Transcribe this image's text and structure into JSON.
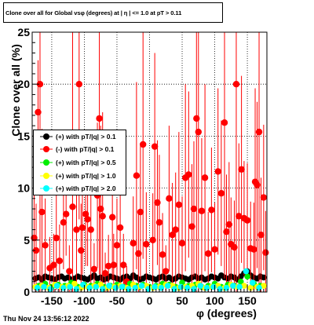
{
  "title": "Clone  over all for Global vsφ (degrees) at | η | <= 1.0 at pT > 0.11",
  "footer": "Thu Nov 24 13:56:12 2022",
  "chart_data": {
    "type": "scatter",
    "xlabel": "φ (degrees)",
    "ylabel": "Clone  over all (%)",
    "xlim": [
      -180,
      180
    ],
    "ylim": [
      0,
      25
    ],
    "xticks": [
      -150,
      -100,
      -50,
      0,
      50,
      100,
      150
    ],
    "yticks": [
      0,
      5,
      10,
      15,
      20,
      25
    ],
    "grid": true,
    "legend_position": "middle-left",
    "series": [
      {
        "name": "(+) with pT/|q| > 0.1",
        "color": "#000000",
        "x": [
          -175,
          -170,
          -165,
          -160,
          -155,
          -150,
          -145,
          -140,
          -135,
          -130,
          -125,
          -120,
          -115,
          -110,
          -105,
          -100,
          -95,
          -90,
          -85,
          -80,
          -75,
          -70,
          -65,
          -60,
          -55,
          -50,
          -45,
          -40,
          -35,
          -30,
          -25,
          -20,
          -15,
          -10,
          -5,
          0,
          5,
          10,
          15,
          20,
          25,
          30,
          35,
          40,
          45,
          50,
          55,
          60,
          65,
          70,
          75,
          80,
          85,
          90,
          95,
          100,
          105,
          110,
          115,
          120,
          125,
          130,
          135,
          140,
          145,
          150,
          155,
          160,
          165,
          170,
          175
        ],
        "y": [
          1.3,
          1.4,
          1.2,
          1.5,
          1.4,
          1.3,
          1.2,
          1.4,
          1.5,
          1.3,
          1.4,
          1.2,
          1.3,
          1.5,
          1.4,
          1.3,
          1.2,
          1.4,
          1.6,
          1.3,
          1.4,
          1.2,
          1.3,
          1.5,
          1.4,
          1.3,
          1.2,
          1.4,
          1.5,
          1.3,
          1.6,
          1.4,
          1.2,
          1.3,
          1.5,
          1.4,
          1.3,
          1.2,
          1.4,
          1.5,
          1.3,
          1.4,
          1.2,
          1.3,
          1.5,
          1.4,
          1.3,
          1.2,
          1.4,
          1.5,
          1.3,
          1.4,
          1.2,
          1.3,
          1.5,
          1.4,
          1.3,
          1.6,
          1.4,
          1.3,
          1.5,
          1.4,
          1.2,
          1.5,
          1.8,
          2.0,
          1.6,
          1.4,
          1.3,
          1.5,
          1.4
        ]
      },
      {
        "name": "(-) with pT/|q| > 0.1",
        "color": "#ff0000",
        "x": [
          -177,
          -174,
          -171,
          -168,
          -165,
          -160,
          -153,
          -147,
          -143,
          -138,
          -132,
          -128,
          -123,
          -118,
          -112,
          -108,
          -105,
          -103,
          -98,
          -95,
          -90,
          -85,
          -80,
          -77,
          -75,
          -72,
          -68,
          -63,
          -57,
          -55,
          -50,
          -45,
          -40,
          -35,
          -25,
          -20,
          -17,
          -14,
          -10,
          -5,
          5,
          8,
          12,
          15,
          20,
          25,
          30,
          35,
          40,
          45,
          50,
          55,
          60,
          65,
          68,
          72,
          75,
          80,
          85,
          90,
          95,
          100,
          105,
          110,
          115,
          118,
          122,
          125,
          130,
          133,
          137,
          141,
          145,
          150,
          155,
          160,
          162,
          165,
          168,
          171,
          175,
          178
        ],
        "y": [
          5.2,
          4.0,
          17.3,
          20.0,
          7.7,
          4.5,
          2.3,
          2.6,
          5.2,
          3.0,
          6.7,
          7.5,
          2.0,
          8.2,
          6.0,
          20.0,
          4.0,
          6.2,
          7.5,
          7.0,
          6.0,
          2.2,
          9.3,
          16.7,
          8.0,
          7.3,
          1.8,
          2.5,
          7.2,
          2.6,
          4.5,
          6.2,
          2.6,
          1.0,
          4.7,
          11.2,
          3.7,
          7.7,
          14.2,
          4.6,
          5.0,
          14.0,
          8.6,
          6.7,
          3.6,
          2.0,
          9.0,
          5.5,
          6.0,
          8.4,
          4.7,
          11.0,
          11.3,
          6.3,
          8.0,
          16.7,
          15.4,
          7.8,
          11.0,
          3.7,
          7.9,
          4.1,
          11.6,
          9.5,
          16.3,
          5.8,
          6.5,
          4.6,
          4.3,
          20.0,
          7.3,
          11.8,
          7.1,
          6.9,
          4.2,
          4.1,
          10.6,
          10.3,
          15.4,
          5.5,
          9.1,
          3.8
        ],
        "err": [
          5.0,
          4.5,
          5.0,
          25.0,
          8.0,
          4.5,
          3.0,
          3.0,
          5.0,
          3.5,
          4.5,
          4.0,
          2.5,
          25.0,
          6.0,
          13.0,
          4.5,
          4.5,
          5.0,
          4.5,
          6.0,
          2.5,
          7.0,
          15.0,
          8.0,
          10.0,
          2.0,
          3.0,
          6.0,
          3.0,
          4.5,
          6.0,
          3.0,
          1.5,
          4.5,
          9.0,
          4.0,
          6.5,
          11.0,
          5.0,
          4.5,
          9.0,
          6.0,
          6.5,
          4.0,
          2.5,
          7.0,
          5.0,
          5.5,
          7.0,
          4.5,
          9.0,
          8.0,
          6.0,
          6.5,
          20.0,
          20.0,
          7.0,
          9.0,
          4.0,
          6.0,
          4.5,
          8.0,
          7.0,
          15.0,
          5.5,
          6.0,
          4.5,
          4.5,
          20.0,
          7.0,
          9.0,
          5.5,
          5.5,
          4.5,
          4.5,
          9.0,
          8.0,
          20.0,
          5.5,
          7.0,
          4.0
        ]
      },
      {
        "name": "(+) with pT/|q| > 0.5",
        "color": "#00ee00",
        "x": [
          -170,
          -160,
          -150,
          -140,
          -130,
          -120,
          -110,
          -100,
          -90,
          -80,
          -70,
          -60,
          -50,
          -40,
          -30,
          -20,
          -10,
          0,
          10,
          20,
          30,
          40,
          50,
          60,
          70,
          80,
          90,
          100,
          110,
          120,
          130,
          140,
          150,
          160,
          170
        ],
        "y": [
          0.6,
          0.8,
          0.5,
          0.7,
          0.6,
          0.9,
          0.5,
          0.7,
          0.6,
          0.8,
          0.5,
          0.6,
          0.7,
          0.5,
          0.8,
          0.6,
          0.7,
          0.5,
          0.6,
          0.8,
          0.7,
          0.5,
          0.9,
          0.6,
          0.7,
          0.5,
          0.6,
          0.8,
          0.5,
          0.7,
          0.6,
          1.0,
          1.5,
          0.8,
          0.6
        ]
      },
      {
        "name": "(+) with pT/|q| > 1.0",
        "color": "#ffff00",
        "x": [
          -175,
          -165,
          -155,
          -145,
          -135,
          -125,
          -115,
          -105,
          -95,
          -85,
          -75,
          -65,
          -55,
          -45,
          -35,
          -25,
          -15,
          -5,
          5,
          15,
          25,
          35,
          45,
          55,
          65,
          75,
          85,
          95,
          105,
          115,
          125,
          135,
          145,
          155,
          165,
          175
        ],
        "y": [
          0.5,
          0.6,
          0.4,
          0.7,
          0.5,
          0.6,
          0.8,
          0.4,
          0.5,
          0.6,
          0.7,
          0.4,
          0.5,
          0.6,
          0.4,
          0.7,
          0.5,
          0.6,
          0.4,
          0.5,
          0.7,
          0.6,
          0.4,
          0.5,
          0.6,
          0.8,
          0.4,
          0.5,
          0.6,
          0.4,
          0.7,
          0.5,
          0.6,
          0.4,
          0.5,
          0.6
        ]
      },
      {
        "name": "(+) with pT/|q| > 2.0",
        "color": "#00ffff",
        "x": [
          -172,
          -162,
          -152,
          -142,
          -132,
          -122,
          -112,
          -102,
          -92,
          -82,
          -72,
          -62,
          -52,
          -42,
          -32,
          -22,
          -12,
          -2,
          8,
          18,
          28,
          38,
          48,
          58,
          68,
          78,
          88,
          98,
          108,
          118,
          128,
          138,
          148,
          158,
          168
        ],
        "y": [
          0.4,
          0.5,
          0.3,
          0.6,
          0.4,
          0.5,
          0.3,
          0.7,
          0.4,
          0.5,
          0.3,
          0.6,
          0.4,
          0.5,
          0.3,
          0.4,
          0.6,
          0.3,
          0.5,
          0.4,
          0.6,
          0.3,
          0.5,
          0.4,
          0.3,
          0.6,
          0.4,
          0.5,
          0.3,
          0.4,
          0.6,
          0.5,
          2.0,
          0.9,
          0.4
        ]
      }
    ]
  }
}
